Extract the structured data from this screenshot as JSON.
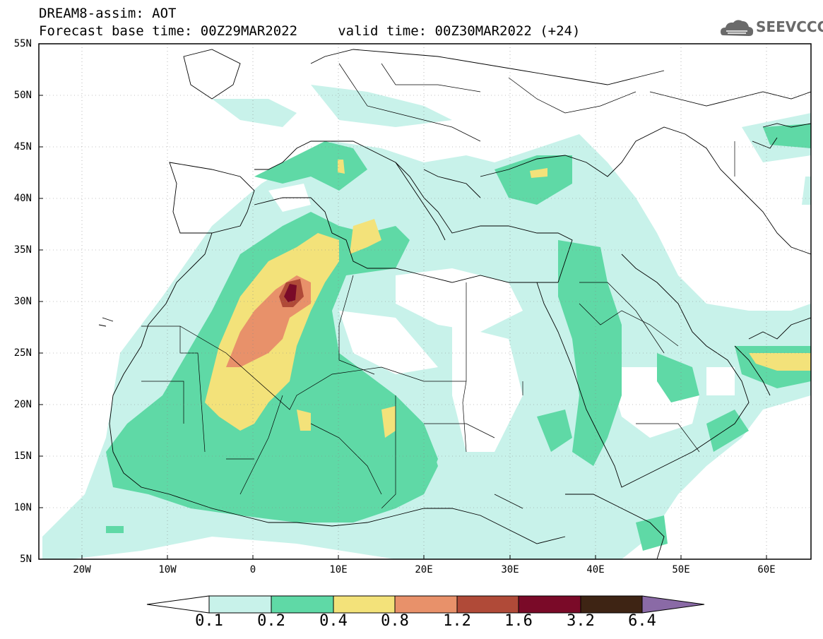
{
  "title": {
    "line1": "DREAM8-assim: AOT",
    "line2": "Forecast base time: 00Z29MAR2022     valid time: 00Z30MAR2022 (+24)"
  },
  "logo": {
    "text": "SEEVCCC",
    "color": "#6a6a6a"
  },
  "map": {
    "lon_range": [
      -25,
      65
    ],
    "lat_range": [
      5,
      55
    ],
    "lat_labels": [
      "5N",
      "10N",
      "15N",
      "20N",
      "25N",
      "30N",
      "35N",
      "40N",
      "45N",
      "50N",
      "55N"
    ],
    "lon_labels": [
      "20W",
      "10W",
      "0",
      "10E",
      "20E",
      "30E",
      "40E",
      "50E",
      "60E"
    ]
  },
  "colorbar": {
    "levels": [
      "0.1",
      "0.2",
      "0.4",
      "0.8",
      "1.2",
      "1.6",
      "3.2",
      "6.4"
    ],
    "colors": [
      "#ffffff",
      "#c8f2ea",
      "#5fd9a6",
      "#f3e27a",
      "#e8916a",
      "#b04a38",
      "#7a0a28",
      "#3e2414",
      "#8a6aa6"
    ]
  }
}
